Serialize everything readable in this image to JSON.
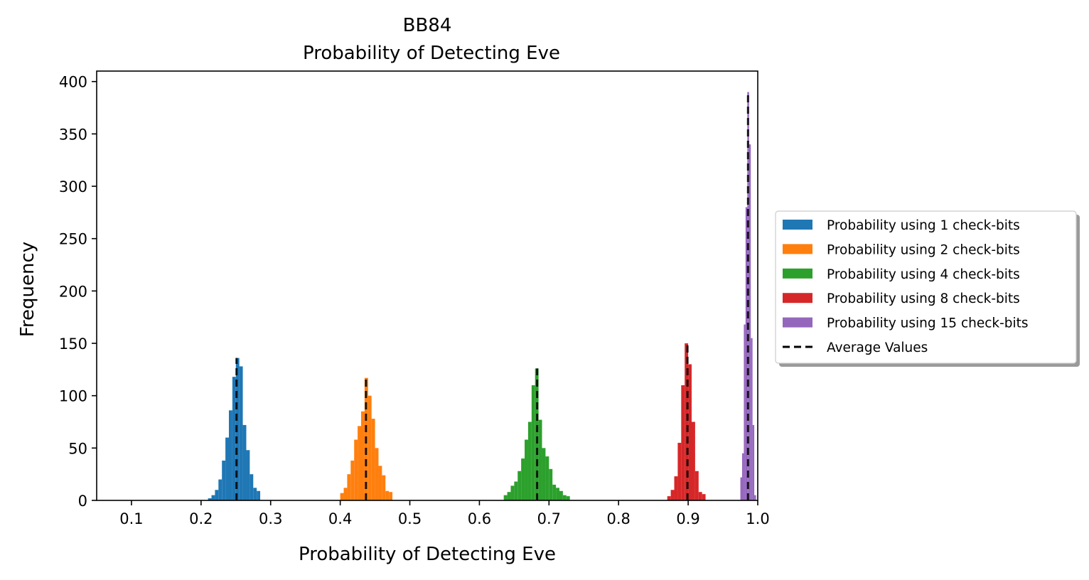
{
  "chart_data": {
    "type": "bar",
    "title": "BB84",
    "subtitle": "Probability of Detecting Eve",
    "xlabel": "Probability of Detecting Eve",
    "ylabel": "Frequency",
    "xlim": [
      0.05,
      1.0
    ],
    "ylim": [
      0,
      410
    ],
    "xticks": [
      "0.1",
      "0.2",
      "0.3",
      "0.4",
      "0.5",
      "0.6",
      "0.7",
      "0.8",
      "0.9",
      "1.0"
    ],
    "yticks": [
      "0",
      "50",
      "100",
      "150",
      "200",
      "250",
      "300",
      "350",
      "400"
    ],
    "grid": false,
    "legend_position": "outside-right",
    "series": [
      {
        "name": "Probability using 1 check-bits",
        "color": "#1f77b4",
        "mean": 0.251,
        "bin_width": 0.005,
        "bins": [
          {
            "x": 0.2125,
            "y": 2
          },
          {
            "x": 0.2175,
            "y": 5
          },
          {
            "x": 0.2225,
            "y": 10
          },
          {
            "x": 0.2275,
            "y": 20
          },
          {
            "x": 0.2325,
            "y": 38
          },
          {
            "x": 0.2375,
            "y": 60
          },
          {
            "x": 0.2425,
            "y": 86
          },
          {
            "x": 0.2475,
            "y": 118
          },
          {
            "x": 0.2525,
            "y": 136
          },
          {
            "x": 0.2575,
            "y": 128
          },
          {
            "x": 0.2625,
            "y": 72
          },
          {
            "x": 0.2675,
            "y": 48
          },
          {
            "x": 0.2725,
            "y": 25
          },
          {
            "x": 0.2775,
            "y": 12
          },
          {
            "x": 0.2825,
            "y": 9
          }
        ]
      },
      {
        "name": "Probability using 2 check-bits",
        "color": "#ff7f0e",
        "mean": 0.437,
        "bin_width": 0.005,
        "bins": [
          {
            "x": 0.4025,
            "y": 7
          },
          {
            "x": 0.4075,
            "y": 12
          },
          {
            "x": 0.4125,
            "y": 25
          },
          {
            "x": 0.4175,
            "y": 38
          },
          {
            "x": 0.4225,
            "y": 58
          },
          {
            "x": 0.4275,
            "y": 71
          },
          {
            "x": 0.4325,
            "y": 85
          },
          {
            "x": 0.4375,
            "y": 117
          },
          {
            "x": 0.4425,
            "y": 100
          },
          {
            "x": 0.4475,
            "y": 78
          },
          {
            "x": 0.4525,
            "y": 50
          },
          {
            "x": 0.4575,
            "y": 33
          },
          {
            "x": 0.4625,
            "y": 24
          },
          {
            "x": 0.4675,
            "y": 9
          },
          {
            "x": 0.4725,
            "y": 8
          }
        ]
      },
      {
        "name": "Probability using 4 check-bits",
        "color": "#2ca02c",
        "mean": 0.683,
        "bin_width": 0.005,
        "bins": [
          {
            "x": 0.6375,
            "y": 5
          },
          {
            "x": 0.6425,
            "y": 8
          },
          {
            "x": 0.6475,
            "y": 14
          },
          {
            "x": 0.6525,
            "y": 18
          },
          {
            "x": 0.6575,
            "y": 28
          },
          {
            "x": 0.6625,
            "y": 40
          },
          {
            "x": 0.6675,
            "y": 58
          },
          {
            "x": 0.6725,
            "y": 75
          },
          {
            "x": 0.6775,
            "y": 110
          },
          {
            "x": 0.6825,
            "y": 126
          },
          {
            "x": 0.6875,
            "y": 77
          },
          {
            "x": 0.6925,
            "y": 50
          },
          {
            "x": 0.6975,
            "y": 42
          },
          {
            "x": 0.7025,
            "y": 30
          },
          {
            "x": 0.7075,
            "y": 15
          },
          {
            "x": 0.7125,
            "y": 12
          },
          {
            "x": 0.7175,
            "y": 9
          },
          {
            "x": 0.7225,
            "y": 5
          },
          {
            "x": 0.7275,
            "y": 4
          }
        ]
      },
      {
        "name": "Probability using 8 check-bits",
        "color": "#d62728",
        "mean": 0.899,
        "bin_width": 0.005,
        "bins": [
          {
            "x": 0.8725,
            "y": 4
          },
          {
            "x": 0.8775,
            "y": 10
          },
          {
            "x": 0.8825,
            "y": 23
          },
          {
            "x": 0.8875,
            "y": 55
          },
          {
            "x": 0.8925,
            "y": 110
          },
          {
            "x": 0.8975,
            "y": 150
          },
          {
            "x": 0.9025,
            "y": 130
          },
          {
            "x": 0.9075,
            "y": 75
          },
          {
            "x": 0.9125,
            "y": 28
          },
          {
            "x": 0.9175,
            "y": 8
          },
          {
            "x": 0.9225,
            "y": 6
          }
        ]
      },
      {
        "name": "Probability using 15 check-bits",
        "color": "#9467bd",
        "mean": 0.986,
        "bin_width": 0.0025,
        "bins": [
          {
            "x": 0.97625,
            "y": 22
          },
          {
            "x": 0.97875,
            "y": 45
          },
          {
            "x": 0.98125,
            "y": 168
          },
          {
            "x": 0.98375,
            "y": 280
          },
          {
            "x": 0.98625,
            "y": 390
          },
          {
            "x": 0.98875,
            "y": 340
          },
          {
            "x": 0.99125,
            "y": 155
          },
          {
            "x": 0.99375,
            "y": 72
          },
          {
            "x": 0.99625,
            "y": 5
          }
        ]
      }
    ],
    "average_line": {
      "name": "Average Values",
      "color": "#000000"
    }
  }
}
